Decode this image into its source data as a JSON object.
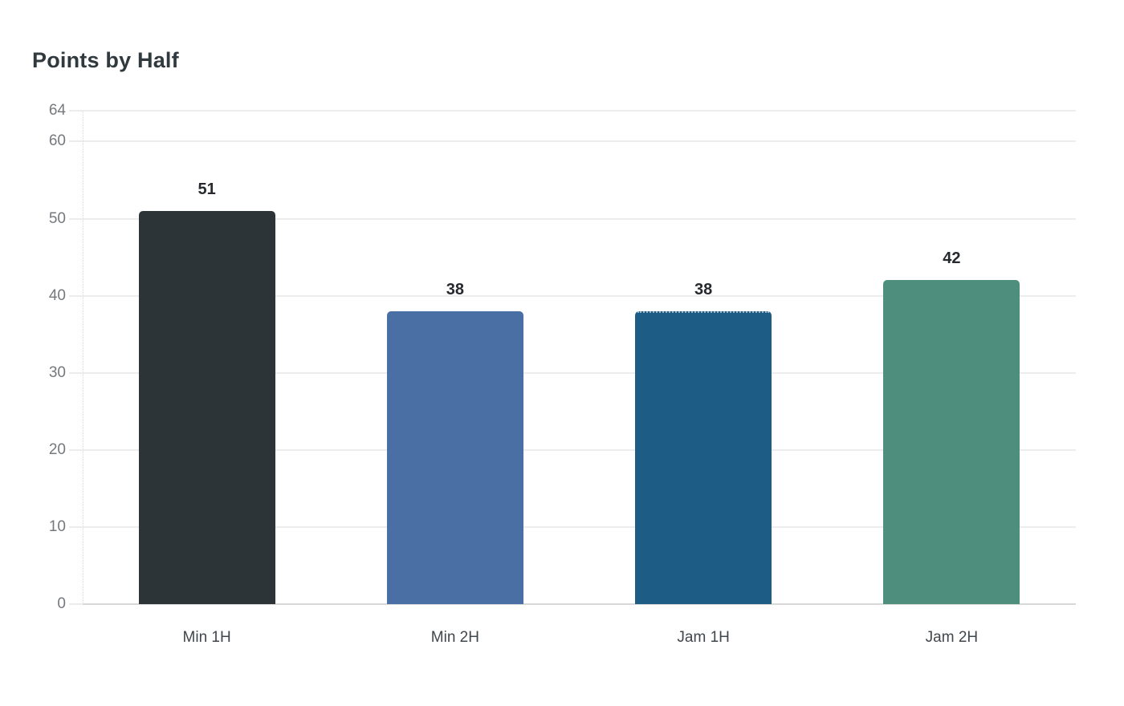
{
  "chart_data": {
    "type": "bar",
    "title": "Points by Half",
    "categories": [
      "Min 1H",
      "Min 2H",
      "Jam 1H",
      "Jam 2H"
    ],
    "values": [
      51,
      38,
      38,
      42
    ],
    "value_labels": [
      "51",
      "38",
      "38",
      "42"
    ],
    "bar_colors": [
      "#2d3438",
      "#4a6fa5",
      "#1d5d85",
      "#4d8e7d"
    ],
    "dotted_top_edge": [
      false,
      false,
      true,
      false
    ],
    "xlabel": "",
    "ylabel": "",
    "ylim": [
      0,
      64
    ],
    "yticks": [
      0,
      10,
      20,
      30,
      40,
      50,
      60,
      64
    ],
    "grid": "horizontal-only",
    "legend": "none",
    "colors": {
      "background": "#ffffff",
      "title_text": "#30393e",
      "ytick_text": "#75797d",
      "category_text": "#40474c",
      "value_text": "#26292d",
      "gridline": "#ededed",
      "baseline": "#d8d8d8",
      "tick_segment": "#ececec",
      "axis_dotted": "#dcdcdc"
    }
  }
}
